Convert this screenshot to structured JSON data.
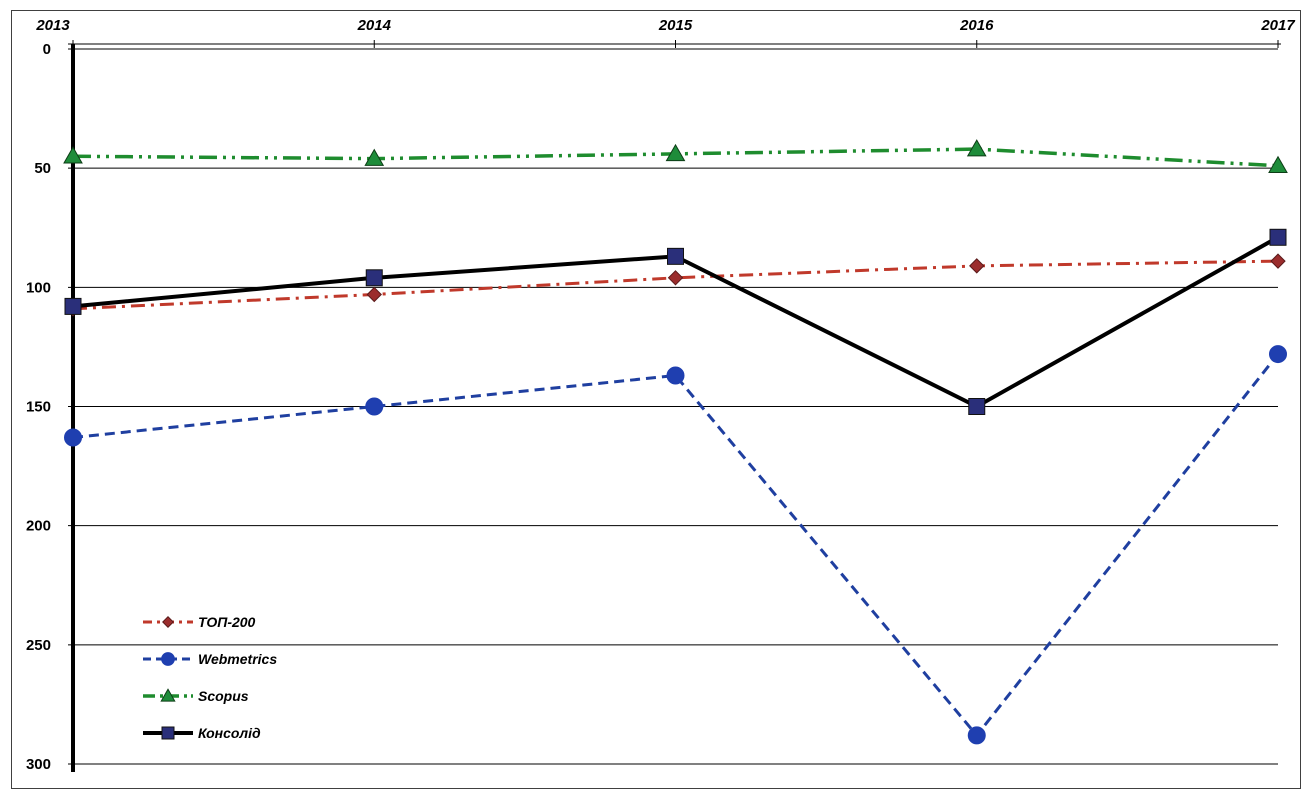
{
  "chart_data": {
    "type": "line",
    "x": [
      "2013",
      "2014",
      "2015",
      "2016",
      "2017"
    ],
    "y_ticks": [
      "0",
      "50",
      "100",
      "150",
      "200",
      "250",
      "300"
    ],
    "ylim": [
      0,
      300
    ],
    "y_inverted": true,
    "x_axis_position": "top",
    "grid": true,
    "legend_position": "bottom-left",
    "series": [
      {
        "name": "ТОП-200",
        "values": [
          109,
          103,
          96,
          91,
          89
        ],
        "color": "#C0392B",
        "style": "dash-dot",
        "marker": "diamond",
        "marker_color": "#9B2D2D"
      },
      {
        "name": "Webmetrics",
        "values": [
          163,
          150,
          137,
          288,
          128
        ],
        "color": "#1F3FA0",
        "style": "dashed",
        "marker": "circle",
        "marker_color": "#1F3FB0"
      },
      {
        "name": "Scopus",
        "values": [
          45,
          46,
          44,
          42,
          49
        ],
        "color": "#1E8C2E",
        "style": "dash-dot-dot",
        "marker": "triangle",
        "marker_color": "#1E8C3A"
      },
      {
        "name": "Консолід",
        "values": [
          108,
          96,
          87,
          150,
          79
        ],
        "color": "#000000",
        "style": "solid",
        "marker": "square",
        "marker_color": "#2A2F7A"
      }
    ]
  }
}
